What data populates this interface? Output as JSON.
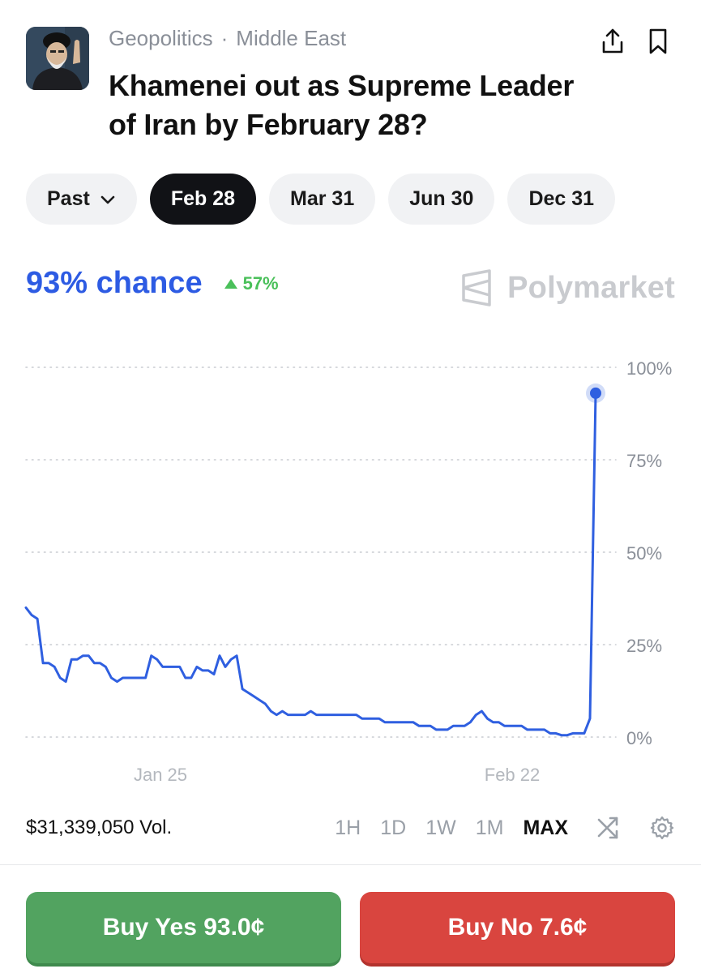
{
  "header": {
    "category": "Geopolitics",
    "subcategory": "Middle East",
    "separator": "·",
    "title": "Khamenei out as Supreme Leader of Iran by February 28?",
    "share_icon": "share-icon",
    "bookmark_icon": "bookmark-icon"
  },
  "date_tabs": [
    {
      "label": "Past",
      "active": false,
      "has_dropdown": true
    },
    {
      "label": "Feb 28",
      "active": true
    },
    {
      "label": "Mar 31",
      "active": false
    },
    {
      "label": "Jun 30",
      "active": false
    },
    {
      "label": "Dec 31",
      "active": false
    }
  ],
  "summary": {
    "chance_text": "93% chance",
    "change_text": "57%",
    "change_direction": "up",
    "brand": "Polymarket"
  },
  "chart_data": {
    "type": "line",
    "y_tick_labels": [
      "100%",
      "75%",
      "50%",
      "25%",
      "0%"
    ],
    "x_tick_labels": [
      "Jan 25",
      "Feb 22"
    ],
    "ylim": [
      0,
      100
    ],
    "grid": true,
    "y_unit": "%",
    "series": [
      {
        "color": "#2f5fe0",
        "t": [
          0,
          1,
          2,
          3,
          4,
          5,
          6,
          7,
          8,
          9,
          10,
          11,
          12,
          13,
          14,
          15,
          16,
          17,
          18,
          19,
          20,
          21,
          22,
          23,
          24,
          25,
          26,
          27,
          28,
          29,
          30,
          31,
          32,
          33,
          34,
          35,
          36,
          37,
          38,
          39,
          40,
          41,
          42,
          43,
          44,
          45,
          46,
          47,
          48,
          49,
          50,
          51,
          52,
          53,
          54,
          55,
          56,
          57,
          58,
          59,
          60,
          61,
          62,
          63,
          64,
          65,
          66,
          67,
          68,
          69,
          70,
          71,
          72,
          73,
          74,
          75,
          76,
          77,
          78,
          79,
          80,
          81,
          82,
          83,
          84,
          85,
          86,
          87,
          88,
          89,
          90,
          91,
          92,
          93,
          94,
          95,
          96,
          97,
          98,
          99,
          100
        ],
        "values": [
          35,
          33,
          32,
          20,
          20,
          19,
          16,
          15,
          21,
          21,
          22,
          22,
          20,
          20,
          19,
          16,
          15,
          16,
          16,
          16,
          16,
          16,
          22,
          21,
          19,
          19,
          19,
          19,
          16,
          16,
          19,
          18,
          18,
          17,
          22,
          19,
          21,
          22,
          13,
          12,
          11,
          10,
          9,
          7,
          6,
          7,
          6,
          6,
          6,
          6,
          7,
          6,
          6,
          6,
          6,
          6,
          6,
          6,
          6,
          5,
          5,
          5,
          5,
          4,
          4,
          4,
          4,
          4,
          4,
          3,
          3,
          3,
          2,
          2,
          2,
          3,
          3,
          3,
          4,
          6,
          7,
          5,
          4,
          4,
          3,
          3,
          3,
          3,
          2,
          2,
          2,
          2,
          1,
          1,
          0.5,
          0.5,
          1,
          1,
          1,
          5,
          93
        ]
      }
    ],
    "current_value": 93
  },
  "stats": {
    "volume": "$31,339,050 Vol.",
    "ranges": [
      {
        "label": "1H",
        "active": false
      },
      {
        "label": "1D",
        "active": false
      },
      {
        "label": "1W",
        "active": false
      },
      {
        "label": "1M",
        "active": false
      },
      {
        "label": "MAX",
        "active": true
      }
    ],
    "shuffle_icon": "shuffle-icon",
    "settings_icon": "gear-icon"
  },
  "actions": {
    "buy_yes": "Buy Yes 93.0¢",
    "buy_no": "Buy No 7.6¢",
    "yes_color": "#52a360",
    "no_color": "#d9453f"
  }
}
